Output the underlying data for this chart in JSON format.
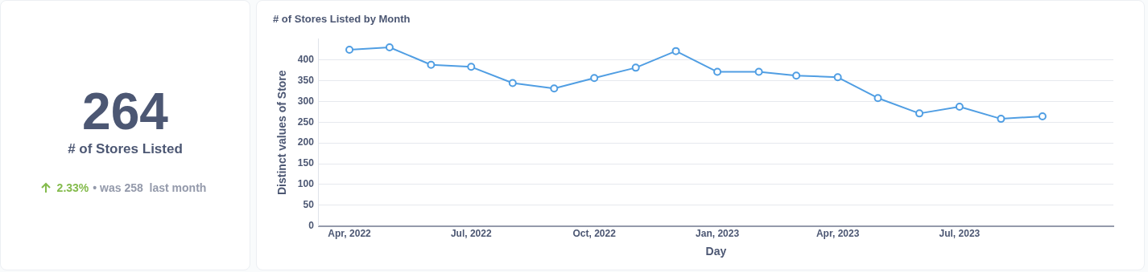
{
  "chart_data": [
    {
      "type": "other",
      "title": "# of Stores Listed",
      "annotations": [
        "264",
        "2.33%",
        "• was 258  last month"
      ]
    },
    {
      "type": "line",
      "title": "# of Stores Listed by Month",
      "xlabel": "Day",
      "ylabel": "Distinct values of Store",
      "x": [
        "2022-04",
        "2022-05",
        "2022-06",
        "2022-07",
        "2022-08",
        "2022-09",
        "2022-10",
        "2022-11",
        "2022-12",
        "2023-01",
        "2023-02",
        "2023-03",
        "2023-04",
        "2023-05",
        "2023-06",
        "2023-07",
        "2023-08",
        "2023-09"
      ],
      "series": [
        {
          "color": "#509ee3",
          "values": [
            424,
            430,
            388,
            383,
            344,
            331,
            356,
            381,
            421,
            371,
            371,
            362,
            358,
            308,
            271,
            287,
            258,
            264
          ]
        }
      ],
      "xlim": [
        "2022-03-09",
        "2023-10-24"
      ],
      "xticks": [
        {
          "value": "2022-04",
          "label": "Apr, 2022"
        },
        {
          "value": "2022-07",
          "label": "Jul, 2022"
        },
        {
          "value": "2022-10",
          "label": "Oct, 2022"
        },
        {
          "value": "2023-01",
          "label": "Jan, 2023"
        },
        {
          "value": "2023-04",
          "label": "Apr, 2023"
        },
        {
          "value": "2023-07",
          "label": "Jul, 2023"
        }
      ],
      "ylim": [
        0,
        450
      ],
      "yticks": [
        0,
        50,
        100,
        150,
        200,
        250,
        300,
        350,
        400
      ],
      "grid": "y",
      "legend": false,
      "marker": "circle",
      "line_style": "solid"
    }
  ]
}
